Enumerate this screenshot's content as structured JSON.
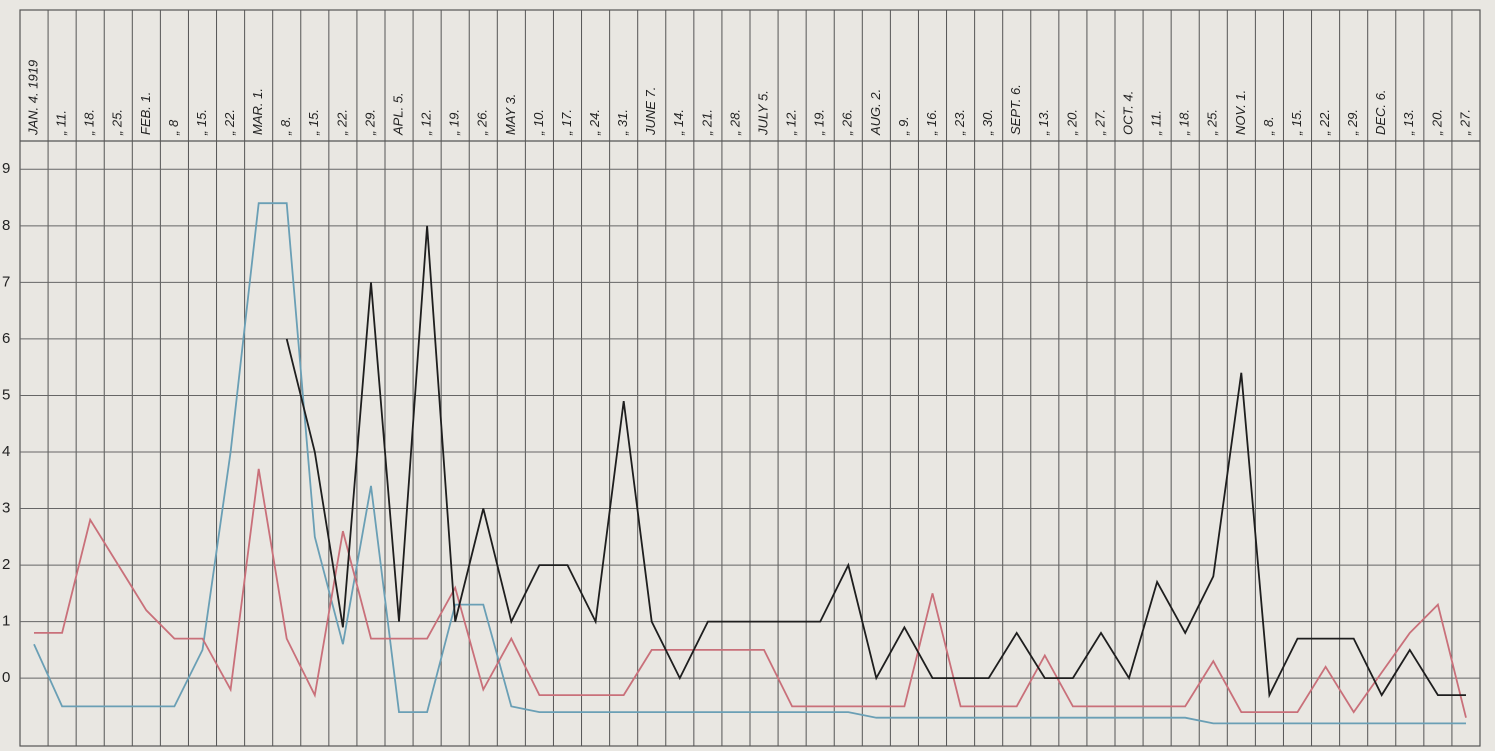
{
  "chart_data": {
    "type": "line",
    "categories": [
      "JAN. 4. 1919",
      "„ 11.",
      "„ 18.",
      "„ 25.",
      "FEB. 1.",
      "„ 8",
      "„ 15.",
      "„ 22.",
      "MAR. 1.",
      "„ 8.",
      "„ 15.",
      "„ 22.",
      "„ 29.",
      "APL. 5.",
      "„ 12.",
      "„ 19.",
      "„ 26.",
      "MAY 3.",
      "„ 10.",
      "„ 17.",
      "„ 24.",
      "„ 31.",
      "JUNE 7.",
      "„ 14.",
      "„ 21.",
      "„ 28.",
      "JULY 5.",
      "„ 12.",
      "„ 19.",
      "„ 26.",
      "AUG. 2.",
      "„ 9.",
      "„ 16.",
      "„ 23.",
      "„ 30.",
      "SEPT. 6.",
      "„ 13.",
      "„ 20.",
      "„ 27.",
      "OCT. 4.",
      "„ 11.",
      "„ 18.",
      "„ 25.",
      "NOV. 1.",
      "„ 8.",
      "„ 15.",
      "„ 22.",
      "„ 29.",
      "DEC. 6.",
      "„ 13.",
      "„ 20.",
      "„ 27."
    ],
    "series": [
      {
        "color": "#6a9fb5",
        "values": [
          0.6,
          -0.5,
          -0.5,
          -0.5,
          -0.5,
          -0.5,
          0.5,
          4.0,
          8.4,
          8.4,
          2.5,
          0.6,
          3.4,
          -0.6,
          -0.6,
          1.3,
          1.3,
          -0.5,
          -0.6,
          -0.6,
          -0.6,
          -0.6,
          -0.6,
          -0.6,
          -0.6,
          -0.6,
          -0.6,
          -0.6,
          -0.6,
          -0.6,
          -0.7,
          -0.7,
          -0.7,
          -0.7,
          -0.7,
          -0.7,
          -0.7,
          -0.7,
          -0.7,
          -0.7,
          -0.7,
          -0.7,
          -0.8,
          -0.8,
          -0.8,
          -0.8,
          -0.8,
          -0.8,
          -0.8,
          -0.8,
          -0.8,
          -0.8
        ]
      },
      {
        "color": "#c9707a",
        "values": [
          0.8,
          0.8,
          2.8,
          2.0,
          1.2,
          0.7,
          0.7,
          -0.2,
          3.7,
          0.7,
          -0.3,
          2.6,
          0.7,
          0.7,
          0.7,
          1.6,
          -0.2,
          0.7,
          -0.3,
          -0.3,
          -0.3,
          -0.3,
          0.5,
          0.5,
          0.5,
          0.5,
          0.5,
          -0.5,
          -0.5,
          -0.5,
          -0.5,
          -0.5,
          1.5,
          -0.5,
          -0.5,
          -0.5,
          0.4,
          -0.5,
          -0.5,
          -0.5,
          -0.5,
          -0.5,
          0.3,
          -0.6,
          -0.6,
          -0.6,
          0.2,
          -0.6,
          0.1,
          0.8,
          1.3,
          -0.7
        ]
      },
      {
        "color": "#1e1e1e",
        "values": [
          null,
          null,
          null,
          null,
          null,
          null,
          null,
          null,
          null,
          6.0,
          4.0,
          0.9,
          7.0,
          1.0,
          8.0,
          1.0,
          3.0,
          1.0,
          2.0,
          2.0,
          1.0,
          4.9,
          1.0,
          0,
          1.0,
          1.0,
          1.0,
          1.0,
          1.0,
          2.0,
          0,
          0.9,
          0,
          0,
          0,
          0.8,
          0,
          0,
          0.8,
          0,
          1.7,
          0.8,
          1.8,
          5.4,
          -0.3,
          0.7,
          0.7,
          0.7,
          -0.3,
          0.5,
          -0.3,
          -0.3
        ]
      }
    ],
    "ylim": [
      -1.2,
      9.5
    ],
    "yticks": [
      0,
      1,
      2,
      3,
      4,
      5,
      6,
      7,
      8,
      9
    ],
    "grid": true
  }
}
